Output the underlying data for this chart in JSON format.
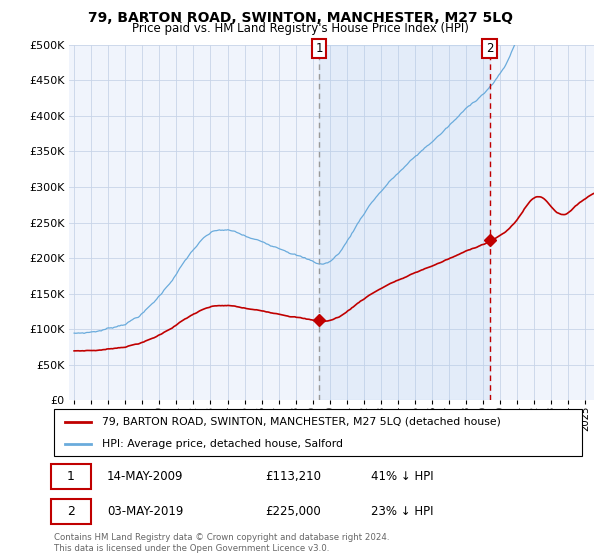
{
  "title": "79, BARTON ROAD, SWINTON, MANCHESTER, M27 5LQ",
  "subtitle": "Price paid vs. HM Land Registry's House Price Index (HPI)",
  "legend_line1": "79, BARTON ROAD, SWINTON, MANCHESTER, M27 5LQ (detached house)",
  "legend_line2": "HPI: Average price, detached house, Salford",
  "annotation1_date": "14-MAY-2009",
  "annotation1_price": "£113,210",
  "annotation1_hpi": "41% ↓ HPI",
  "annotation2_date": "03-MAY-2019",
  "annotation2_price": "£225,000",
  "annotation2_hpi": "23% ↓ HPI",
  "footer": "Contains HM Land Registry data © Crown copyright and database right 2024.\nThis data is licensed under the Open Government Licence v3.0.",
  "hpi_color": "#6aabdc",
  "price_color": "#c00000",
  "dashed_color_1": "#aaaaaa",
  "dashed_color_2": "#cc0000",
  "shade_color": "#ddeeff",
  "background_color": "#ffffff",
  "plot_bg_color": "#f0f4fc",
  "grid_color": "#c8d4e8",
  "ylim": [
    0,
    500000
  ],
  "yticks": [
    0,
    50000,
    100000,
    150000,
    200000,
    250000,
    300000,
    350000,
    400000,
    450000,
    500000
  ],
  "sale1_x": 2009.37,
  "sale1_y": 113210,
  "sale2_x": 2019.37,
  "sale2_y": 225000,
  "xmin": 1995,
  "xmax": 2025
}
